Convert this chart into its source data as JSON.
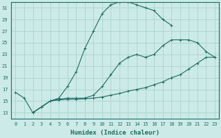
{
  "xlabel": "Humidex (Indice chaleur)",
  "bg_color": "#cceae7",
  "grid_color": "#aad4d0",
  "line_color": "#1a6b60",
  "xlim": [
    -0.5,
    23.5
  ],
  "ylim": [
    12,
    32
  ],
  "xticks": [
    0,
    1,
    2,
    3,
    4,
    5,
    6,
    7,
    8,
    9,
    10,
    11,
    12,
    13,
    14,
    15,
    16,
    17,
    18,
    19,
    20,
    21,
    22,
    23
  ],
  "yticks": [
    13,
    15,
    17,
    19,
    21,
    23,
    25,
    27,
    29,
    31
  ],
  "line1_x": [
    0,
    1,
    2,
    3,
    4,
    5,
    6,
    7,
    8,
    9,
    10,
    11,
    12,
    13,
    14,
    15,
    16,
    17,
    18
  ],
  "line1_y": [
    16.5,
    15.5,
    13.0,
    14.0,
    15.0,
    15.5,
    17.5,
    20.0,
    24.0,
    27.0,
    30.0,
    31.5,
    32.0,
    32.0,
    31.5,
    31.0,
    30.5,
    29.0,
    28.0
  ],
  "line2_x": [
    2,
    3,
    4,
    5,
    6,
    7,
    8,
    9,
    10,
    11,
    12,
    13,
    14,
    15,
    16,
    17,
    18,
    19,
    20,
    21,
    22,
    23
  ],
  "line2_y": [
    13.0,
    14.0,
    15.0,
    15.3,
    15.5,
    15.5,
    15.5,
    16.0,
    17.5,
    19.5,
    21.5,
    22.5,
    23.0,
    22.5,
    23.0,
    24.5,
    25.5,
    25.5,
    25.5,
    25.0,
    23.5,
    22.5
  ],
  "line3_x": [
    2,
    3,
    4,
    5,
    6,
    7,
    8,
    9,
    10,
    11,
    12,
    13,
    14,
    15,
    16,
    17,
    18,
    19,
    20,
    21,
    22,
    23
  ],
  "line3_y": [
    13.0,
    14.0,
    15.0,
    15.2,
    15.3,
    15.3,
    15.4,
    15.5,
    15.7,
    16.0,
    16.3,
    16.7,
    17.0,
    17.3,
    17.8,
    18.3,
    19.0,
    19.5,
    20.5,
    21.5,
    22.5,
    22.5
  ]
}
